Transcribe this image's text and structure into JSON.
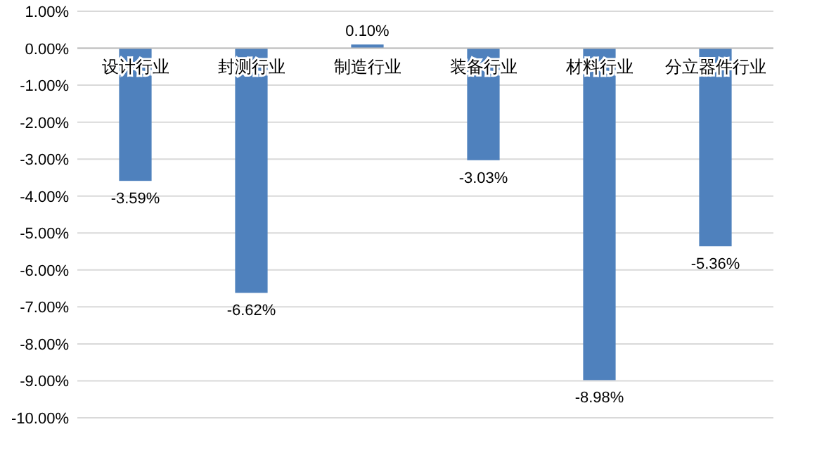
{
  "chart_data": {
    "type": "bar",
    "categories": [
      "设计行业",
      "封测行业",
      "制造行业",
      "装备行业",
      "材料行业",
      "分立器件行业"
    ],
    "values": [
      -3.59,
      -6.62,
      0.1,
      -3.03,
      -8.98,
      -5.36
    ],
    "value_labels": [
      "-3.59%",
      "-6.62%",
      "0.10%",
      "-3.03%",
      "-8.98%",
      "-5.36%"
    ],
    "color": "#4f81bd",
    "ylim": [
      -10,
      1
    ],
    "yticks": [
      {
        "value": 1,
        "label": "1.00%"
      },
      {
        "value": 0,
        "label": "0.00%"
      },
      {
        "value": -1,
        "label": "-1.00%"
      },
      {
        "value": -2,
        "label": "-2.00%"
      },
      {
        "value": -3,
        "label": "-3.00%"
      },
      {
        "value": -4,
        "label": "-4.00%"
      },
      {
        "value": -5,
        "label": "-5.00%"
      },
      {
        "value": -6,
        "label": "-6.00%"
      },
      {
        "value": -7,
        "label": "-7.00%"
      },
      {
        "value": -8,
        "label": "-8.00%"
      },
      {
        "value": -9,
        "label": "-9.00%"
      },
      {
        "value": -10,
        "label": "-10.00%"
      }
    ],
    "grid": "y"
  }
}
